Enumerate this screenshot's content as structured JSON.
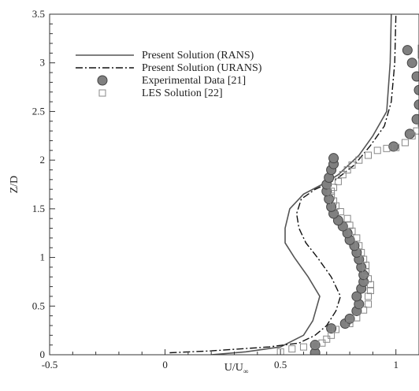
{
  "chart_data": {
    "type": "scatter",
    "title": "",
    "xlabel": "U/U",
    "xlabel_subscript": "∞",
    "ylabel": "Z/D",
    "xlim": [
      -0.5,
      1.1
    ],
    "ylim": [
      0,
      3.5
    ],
    "x_ticks": [
      -0.5,
      0,
      0.5,
      1
    ],
    "x_tick_labels": [
      "-0.5",
      "0",
      "0.5",
      "1"
    ],
    "y_ticks": [
      0,
      0.5,
      1,
      1.5,
      2,
      2.5,
      3,
      3.5
    ],
    "y_tick_labels": [
      "0",
      "0.5",
      "1",
      "1.5",
      "2",
      "2.5",
      "3",
      "3.5"
    ],
    "grid": false,
    "legend_position": "top-left",
    "series": [
      {
        "name": "Present Solution (RANS)",
        "style": "solid-line",
        "color": "#555555",
        "points": [
          [
            0.2,
            0.0
          ],
          [
            0.35,
            0.03
          ],
          [
            0.5,
            0.08
          ],
          [
            0.6,
            0.2
          ],
          [
            0.64,
            0.35
          ],
          [
            0.67,
            0.6
          ],
          [
            0.62,
            0.8
          ],
          [
            0.56,
            1.0
          ],
          [
            0.52,
            1.15
          ],
          [
            0.52,
            1.3
          ],
          [
            0.54,
            1.5
          ],
          [
            0.6,
            1.65
          ],
          [
            0.68,
            1.75
          ],
          [
            0.75,
            1.85
          ],
          [
            0.84,
            2.05
          ],
          [
            0.9,
            2.25
          ],
          [
            0.96,
            2.5
          ],
          [
            0.975,
            3.0
          ],
          [
            0.98,
            3.5
          ]
        ]
      },
      {
        "name": "Present Solution (URANS)",
        "style": "dash-dot-line",
        "color": "#111111",
        "points": [
          [
            0.02,
            0.02
          ],
          [
            0.2,
            0.04
          ],
          [
            0.45,
            0.08
          ],
          [
            0.58,
            0.12
          ],
          [
            0.65,
            0.2
          ],
          [
            0.7,
            0.3
          ],
          [
            0.74,
            0.45
          ],
          [
            0.76,
            0.6
          ],
          [
            0.72,
            0.8
          ],
          [
            0.66,
            1.0
          ],
          [
            0.61,
            1.15
          ],
          [
            0.58,
            1.3
          ],
          [
            0.57,
            1.45
          ],
          [
            0.59,
            1.6
          ],
          [
            0.65,
            1.7
          ],
          [
            0.74,
            1.8
          ],
          [
            0.82,
            1.95
          ],
          [
            0.89,
            2.15
          ],
          [
            0.95,
            2.35
          ],
          [
            0.98,
            2.6
          ],
          [
            0.995,
            3.0
          ],
          [
            1.0,
            3.5
          ]
        ]
      },
      {
        "name": "Experimental Data [21]",
        "style": "filled-circle",
        "color": "#808080",
        "points": [
          [
            0.65,
            0.02
          ],
          [
            0.65,
            0.1
          ],
          [
            0.72,
            0.27
          ],
          [
            0.78,
            0.32
          ],
          [
            0.8,
            0.37
          ],
          [
            0.83,
            0.45
          ],
          [
            0.84,
            0.52
          ],
          [
            0.83,
            0.6
          ],
          [
            0.85,
            0.68
          ],
          [
            0.86,
            0.75
          ],
          [
            0.86,
            0.82
          ],
          [
            0.85,
            0.9
          ],
          [
            0.84,
            0.98
          ],
          [
            0.83,
            1.05
          ],
          [
            0.82,
            1.12
          ],
          [
            0.8,
            1.18
          ],
          [
            0.79,
            1.25
          ],
          [
            0.77,
            1.32
          ],
          [
            0.75,
            1.38
          ],
          [
            0.73,
            1.45
          ],
          [
            0.72,
            1.52
          ],
          [
            0.71,
            1.6
          ],
          [
            0.7,
            1.68
          ],
          [
            0.7,
            1.75
          ],
          [
            0.71,
            1.82
          ],
          [
            0.72,
            1.9
          ],
          [
            0.73,
            1.96
          ],
          [
            0.73,
            2.02
          ],
          [
            0.99,
            2.14
          ],
          [
            1.06,
            2.27
          ],
          [
            1.09,
            2.42
          ],
          [
            1.1,
            2.57
          ],
          [
            1.1,
            2.72
          ],
          [
            1.09,
            2.86
          ],
          [
            1.07,
            3.0
          ],
          [
            1.05,
            3.13
          ]
        ]
      },
      {
        "name": "LES Solution [22]",
        "style": "hollow-square",
        "color": "#888888",
        "points": [
          [
            0.5,
            0.03
          ],
          [
            0.55,
            0.06
          ],
          [
            0.6,
            0.08
          ],
          [
            0.65,
            0.1
          ],
          [
            0.68,
            0.12
          ],
          [
            0.7,
            0.16
          ],
          [
            0.72,
            0.2
          ],
          [
            0.74,
            0.26
          ],
          [
            0.8,
            0.32
          ],
          [
            0.83,
            0.38
          ],
          [
            0.86,
            0.46
          ],
          [
            0.88,
            0.52
          ],
          [
            0.88,
            0.6
          ],
          [
            0.89,
            0.66
          ],
          [
            0.89,
            0.72
          ],
          [
            0.88,
            0.78
          ],
          [
            0.87,
            0.85
          ],
          [
            0.87,
            0.92
          ],
          [
            0.86,
            0.98
          ],
          [
            0.85,
            1.05
          ],
          [
            0.84,
            1.12
          ],
          [
            0.83,
            1.2
          ],
          [
            0.81,
            1.27
          ],
          [
            0.8,
            1.33
          ],
          [
            0.79,
            1.4
          ],
          [
            0.76,
            1.47
          ],
          [
            0.74,
            1.53
          ],
          [
            0.73,
            1.58
          ],
          [
            0.72,
            1.63
          ],
          [
            0.72,
            1.68
          ],
          [
            0.73,
            1.72
          ],
          [
            0.75,
            1.78
          ],
          [
            0.77,
            1.85
          ],
          [
            0.79,
            1.9
          ],
          [
            0.81,
            1.95
          ],
          [
            0.84,
            2.0
          ],
          [
            0.88,
            2.05
          ],
          [
            0.92,
            2.1
          ],
          [
            0.96,
            2.12
          ],
          [
            1.0,
            2.13
          ],
          [
            1.04,
            2.18
          ],
          [
            1.07,
            2.25
          ],
          [
            1.09,
            2.3
          ],
          [
            1.11,
            2.38
          ],
          [
            1.12,
            2.45
          ],
          [
            1.12,
            2.53
          ],
          [
            1.12,
            2.62
          ],
          [
            1.12,
            2.72
          ],
          [
            1.12,
            2.8
          ],
          [
            1.12,
            2.9
          ],
          [
            1.12,
            3.0
          ],
          [
            1.11,
            3.08
          ],
          [
            1.11,
            3.15
          ]
        ]
      }
    ]
  },
  "colors": {
    "axis": "#333333",
    "text": "#222222",
    "background": "#ffffff"
  }
}
